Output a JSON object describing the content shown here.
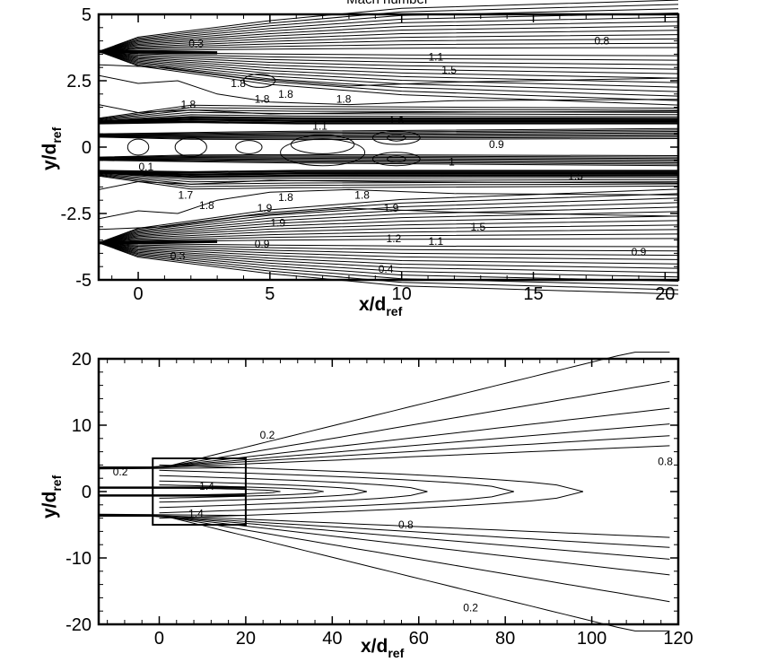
{
  "chart_data": [
    {
      "type": "contour",
      "title": "Mach number",
      "xlabel": "x/d",
      "xlabel_sub": "ref",
      "ylabel": "y/d",
      "ylabel_sub": "ref",
      "xlim": [
        -1.5,
        20.5
      ],
      "ylim": [
        -5,
        5
      ],
      "xticks": [
        0,
        5,
        10,
        15,
        20
      ],
      "yticks": [
        -5,
        -2.5,
        0,
        2.5,
        5
      ],
      "grid": false,
      "contour_labels": [
        {
          "text": "0.3",
          "x": 2.2,
          "y": 3.9
        },
        {
          "text": "1.1",
          "x": 11.3,
          "y": 3.4
        },
        {
          "text": "1.5",
          "x": 11.8,
          "y": 2.9
        },
        {
          "text": "0.8",
          "x": 17.6,
          "y": 4.0
        },
        {
          "text": "1.8",
          "x": 1.9,
          "y": 1.6
        },
        {
          "text": "1.8",
          "x": 3.8,
          "y": 2.4
        },
        {
          "text": "1.8",
          "x": 4.7,
          "y": 1.8
        },
        {
          "text": "1.8",
          "x": 5.6,
          "y": 2.0
        },
        {
          "text": "1.8",
          "x": 7.8,
          "y": 1.8
        },
        {
          "text": "1.1",
          "x": 6.9,
          "y": 0.8
        },
        {
          "text": "1.6",
          "x": 9.8,
          "y": 1.0
        },
        {
          "text": "0.9",
          "x": 13.6,
          "y": 0.1
        },
        {
          "text": "0.1",
          "x": 0.3,
          "y": -0.75
        },
        {
          "text": "1",
          "x": 11.9,
          "y": -0.55
        },
        {
          "text": "1.5",
          "x": 16.6,
          "y": -1.1
        },
        {
          "text": "1.7",
          "x": 1.8,
          "y": -1.8
        },
        {
          "text": "1.8",
          "x": 2.6,
          "y": -2.2
        },
        {
          "text": "1.9",
          "x": 4.8,
          "y": -2.3
        },
        {
          "text": "1.8",
          "x": 5.6,
          "y": -1.9
        },
        {
          "text": "1.9",
          "x": 5.3,
          "y": -2.85
        },
        {
          "text": "1.8",
          "x": 8.5,
          "y": -1.8
        },
        {
          "text": "1.9",
          "x": 9.6,
          "y": -2.3
        },
        {
          "text": "1.5",
          "x": 12.9,
          "y": -3.0
        },
        {
          "text": "1.2",
          "x": 9.7,
          "y": -3.45
        },
        {
          "text": "1.1",
          "x": 11.3,
          "y": -3.55
        },
        {
          "text": "0.9",
          "x": 4.7,
          "y": -3.65
        },
        {
          "text": "0.3",
          "x": 1.5,
          "y": -4.1
        },
        {
          "text": "0.4",
          "x": 9.4,
          "y": -4.6
        },
        {
          "text": "0.9",
          "x": 19.0,
          "y": -3.95
        }
      ]
    },
    {
      "type": "contour",
      "xlabel": "x/d",
      "xlabel_sub": "ref",
      "ylabel": "y/d",
      "ylabel_sub": "ref",
      "xlim": [
        -14,
        120
      ],
      "ylim": [
        -20,
        20
      ],
      "xticks": [
        0,
        20,
        40,
        60,
        80,
        100,
        120
      ],
      "yticks": [
        -20,
        -10,
        0,
        10,
        20
      ],
      "grid": false,
      "inset_box": {
        "x": [
          -1.5,
          20
        ],
        "y": [
          -5,
          5
        ]
      },
      "contour_labels": [
        {
          "text": "0.2",
          "x": 25,
          "y": 8.5
        },
        {
          "text": "0.8",
          "x": 117,
          "y": 4.5
        },
        {
          "text": "0.2",
          "x": -9,
          "y": 3.0
        },
        {
          "text": "1.4",
          "x": 11,
          "y": 0.8
        },
        {
          "text": "1.4",
          "x": 8.5,
          "y": -3.3
        },
        {
          "text": "0.8",
          "x": 57,
          "y": -5.0
        },
        {
          "text": "0.2",
          "x": 72,
          "y": -17.5
        }
      ]
    }
  ]
}
